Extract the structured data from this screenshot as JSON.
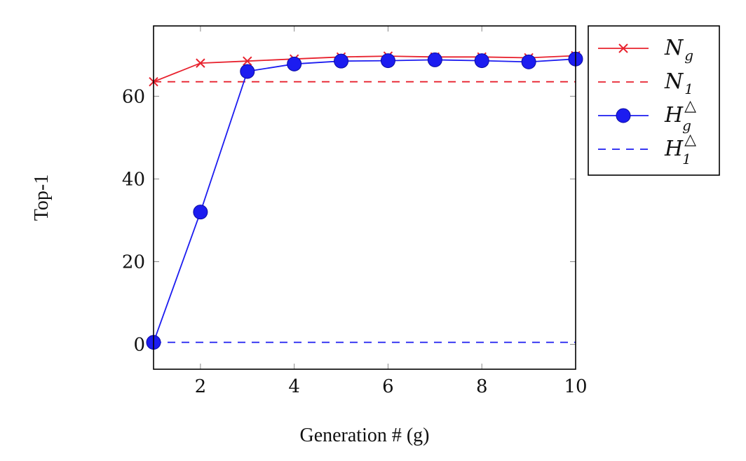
{
  "chart_data": {
    "type": "line",
    "xlabel": "Generation # (g)",
    "ylabel": "Top-1",
    "xlim": [
      1,
      10
    ],
    "ylim": [
      -6,
      77
    ],
    "x_ticks": [
      2,
      4,
      6,
      8,
      10
    ],
    "y_ticks": [
      0,
      20,
      40,
      60
    ],
    "x": [
      1,
      2,
      3,
      4,
      5,
      6,
      7,
      8,
      9,
      10
    ],
    "legend_position": "outside-right",
    "series": [
      {
        "name_base": "N",
        "name_sub": "g",
        "name_sup": "",
        "color": "#e8222e",
        "style": "solid",
        "marker": "x",
        "values": [
          63.5,
          68.0,
          68.5,
          69.0,
          69.5,
          69.7,
          69.5,
          69.5,
          69.3,
          69.8
        ]
      },
      {
        "name_base": "N",
        "name_sub": "1",
        "name_sup": "",
        "color": "#e8222e",
        "style": "dashed",
        "marker": "none",
        "values": [
          63.5,
          63.5,
          63.5,
          63.5,
          63.5,
          63.5,
          63.5,
          63.5,
          63.5,
          63.5
        ]
      },
      {
        "name_base": "H",
        "name_sub": "g",
        "name_sup": "△",
        "color": "#1c1cf0",
        "style": "solid",
        "marker": "circle",
        "values": [
          0.5,
          32.0,
          66.0,
          67.8,
          68.5,
          68.6,
          68.8,
          68.6,
          68.3,
          69.0
        ]
      },
      {
        "name_base": "H",
        "name_sub": "1",
        "name_sup": "△",
        "color": "#1c1cf0",
        "style": "dashed",
        "marker": "none",
        "values": [
          0.5,
          0.5,
          0.5,
          0.5,
          0.5,
          0.5,
          0.5,
          0.5,
          0.5,
          0.5
        ]
      }
    ]
  }
}
